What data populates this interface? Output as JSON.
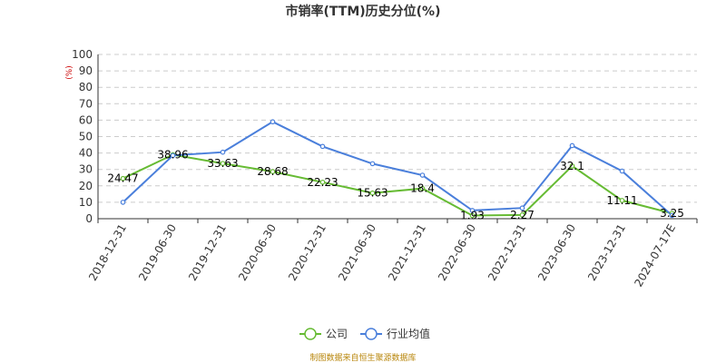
{
  "chart_data": {
    "type": "line",
    "title": "市销率(TTM)历史分位(%)",
    "unit_label": "(%)",
    "categories": [
      "2018-12-31",
      "2019-06-30",
      "2019-12-31",
      "2020-06-30",
      "2020-12-31",
      "2021-06-30",
      "2021-12-31",
      "2022-06-30",
      "2022-12-31",
      "2023-06-30",
      "2023-12-31",
      "2024-07-17E"
    ],
    "ylim": [
      0,
      100
    ],
    "yticks": [
      0,
      10,
      20,
      30,
      40,
      50,
      60,
      70,
      80,
      90,
      100
    ],
    "grid": true,
    "legend_position": "bottom",
    "series": [
      {
        "name": "公司",
        "color": "#66bb33",
        "values": [
          24.47,
          38.96,
          33.63,
          28.68,
          22.23,
          15.63,
          18.4,
          1.93,
          2.27,
          32.1,
          11.11,
          3.25
        ],
        "labels": [
          "24.47",
          "38.96",
          "33.63",
          "28.68",
          "22.23",
          "15.63",
          "18.4",
          "1.93",
          "2.27",
          "32.1",
          "11.11",
          "3.25"
        ]
      },
      {
        "name": "行业均值",
        "color": "#4a7fdb",
        "values": [
          10,
          38.5,
          40.5,
          59,
          44,
          33.5,
          26.5,
          5,
          6.5,
          44.5,
          29,
          2
        ]
      }
    ]
  },
  "source_text": "制图数据来自恒生聚源数据库"
}
